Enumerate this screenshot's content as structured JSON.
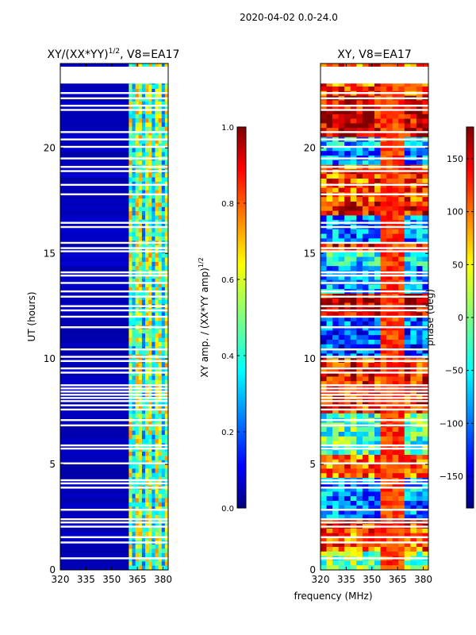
{
  "figure_title": "2020-04-02 0.0-24.0",
  "shared_xlabel": "frequency (MHz)",
  "colors": {
    "background_blue": "#00008f",
    "jet": [
      "#00007f",
      "#0000ff",
      "#007fff",
      "#00ffff",
      "#7fff7f",
      "#ffff00",
      "#ff7f00",
      "#ff0000",
      "#7f0000"
    ]
  },
  "chart_data": [
    {
      "type": "heatmap",
      "title": "XY/(XX*YY)",
      "title_superscript": "1/2",
      "title_suffix": ", V8=EA17",
      "xlabel": "frequency (MHz)",
      "ylabel": "UT (hours)",
      "xlim": [
        320,
        383
      ],
      "ylim": [
        0,
        24
      ],
      "xticks": [
        320,
        335,
        350,
        365,
        380
      ],
      "yticks": [
        0,
        5,
        10,
        15,
        20
      ],
      "active_band_start_mhz": 360,
      "colorbar": {
        "label": "XY amp. / (XX*YY amp)",
        "label_superscript": "1/2",
        "range": [
          0.0,
          1.0
        ],
        "ticks": [
          "0.0",
          "0.2",
          "0.4",
          "0.6",
          "0.8",
          "1.0"
        ]
      }
    },
    {
      "type": "heatmap",
      "title": "XY, V8=EA17",
      "xlabel": "frequency (MHz)",
      "ylabel": "",
      "xlim": [
        320,
        383
      ],
      "ylim": [
        0,
        24
      ],
      "xticks": [
        320,
        335,
        350,
        365,
        380
      ],
      "yticks": [
        0,
        5,
        10,
        15,
        20
      ],
      "colorbar": {
        "label": "phase (deg)",
        "range": [
          -180,
          180
        ],
        "ticks": [
          "-150",
          "-100",
          "-50",
          "0",
          "50",
          "100",
          "150"
        ]
      }
    }
  ],
  "flagged_hours": [
    0.55,
    1.3,
    1.55,
    2.05,
    2.25,
    2.4,
    2.85,
    3.9,
    4.1,
    4.25,
    5.05,
    5.75,
    5.9,
    6.85,
    7.1,
    7.6,
    7.8,
    8.0,
    8.15,
    8.3,
    8.45,
    8.6,
    8.75,
    9.35,
    9.55,
    9.9,
    10.1,
    10.45,
    11.5,
    12.0,
    12.3,
    12.5,
    12.95,
    13.2,
    13.6,
    13.95,
    14.1,
    15.1,
    15.25,
    15.5,
    16.25,
    16.45,
    17.8,
    18.25,
    18.9,
    19.1,
    19.5,
    20.05,
    20.4,
    20.75,
    21.8,
    22.0,
    22.35,
    22.6
  ],
  "flagged_band_hours": [
    23.05,
    23.85
  ]
}
